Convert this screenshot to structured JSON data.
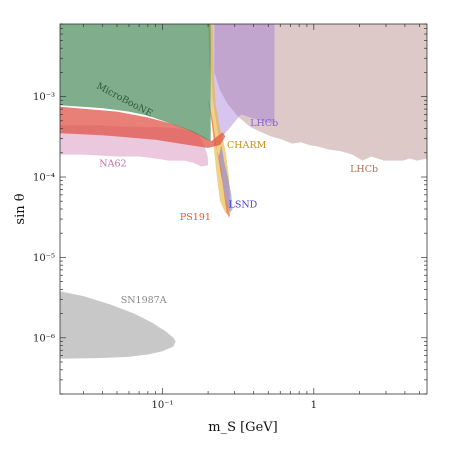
{
  "chart_data": {
    "type": "area",
    "xlabel": "m_S  [GeV]",
    "ylabel": "sin θ",
    "x_scale": "log",
    "y_scale": "log",
    "xlim": [
      0.021,
      5.6
    ],
    "ylim": [
      2e-07,
      0.008
    ],
    "x_ticks": [
      {
        "value": 0.1,
        "label": "10⁻¹"
      },
      {
        "value": 1,
        "label": "1"
      }
    ],
    "y_ticks": [
      {
        "value": 1e-06,
        "label": "10⁻⁶"
      },
      {
        "value": 1e-05,
        "label": "10⁻⁵"
      },
      {
        "value": 0.0001,
        "label": "10⁻⁴"
      },
      {
        "value": 0.001,
        "label": "10⁻³"
      }
    ],
    "grid": false,
    "legend": "none",
    "regions": [
      {
        "name": "LHCb",
        "color": "#b48a86",
        "opacity": 0.45,
        "points": [
          [
            0.22,
            0.008
          ],
          [
            5.6,
            0.008
          ],
          [
            5.6,
            0.00017
          ],
          [
            4.8,
            0.00016
          ],
          [
            4.3,
            0.00017
          ],
          [
            3.9,
            0.00016
          ],
          [
            3.4,
            0.00016
          ],
          [
            2.9,
            0.00016
          ],
          [
            2.4,
            0.00018
          ],
          [
            2.1,
            0.00016
          ],
          [
            1.8,
            0.00019
          ],
          [
            1.5,
            0.00021
          ],
          [
            1.25,
            0.00022
          ],
          [
            1.05,
            0.00024
          ],
          [
            0.93,
            0.00025
          ],
          [
            0.82,
            0.00027
          ],
          [
            0.72,
            0.00026
          ],
          [
            0.62,
            0.00029
          ],
          [
            0.52,
            0.00032
          ],
          [
            0.45,
            0.00036
          ],
          [
            0.38,
            0.00042
          ],
          [
            0.32,
            0.00055
          ],
          [
            0.27,
            0.0008
          ],
          [
            0.24,
            0.0012
          ],
          [
            0.22,
            0.002
          ]
        ]
      },
      {
        "name": "LHCb",
        "color": "#9b6fd6",
        "opacity": 0.4,
        "points": [
          [
            0.21,
            0.008
          ],
          [
            0.55,
            0.008
          ],
          [
            0.55,
            0.00045
          ],
          [
            0.45,
            0.0005
          ],
          [
            0.38,
            0.00055
          ],
          [
            0.33,
            0.0006
          ],
          [
            0.29,
            0.00045
          ],
          [
            0.26,
            0.00035
          ],
          [
            0.235,
            0.0003
          ],
          [
            0.215,
            0.0009
          ],
          [
            0.205,
            0.004
          ]
        ]
      },
      {
        "name": "NA62",
        "color": "#e2b0cf",
        "opacity": 0.7,
        "points": [
          [
            0.021,
            0.00044
          ],
          [
            0.035,
            0.00044
          ],
          [
            0.05,
            0.00043
          ],
          [
            0.07,
            0.00042
          ],
          [
            0.09,
            0.00042
          ],
          [
            0.11,
            0.00041
          ],
          [
            0.13,
            0.0004
          ],
          [
            0.145,
            0.00038
          ],
          [
            0.165,
            0.00036
          ],
          [
            0.18,
            0.0003
          ],
          [
            0.19,
            0.00024
          ],
          [
            0.2,
            0.00017
          ],
          [
            0.2,
            0.00014
          ],
          [
            0.18,
            0.000135
          ],
          [
            0.16,
            0.00015
          ],
          [
            0.14,
            0.00016
          ],
          [
            0.11,
            0.00016
          ],
          [
            0.09,
            0.00017
          ],
          [
            0.07,
            0.00018
          ],
          [
            0.05,
            0.00018
          ],
          [
            0.03,
            0.00019
          ],
          [
            0.021,
            0.00019
          ]
        ]
      },
      {
        "name": "CHARM",
        "color": "#e8b339",
        "opacity": 0.6,
        "points": [
          [
            0.2,
            0.008
          ],
          [
            0.215,
            0.008
          ],
          [
            0.218,
            0.002
          ],
          [
            0.225,
            0.0008
          ],
          [
            0.24,
            0.0004
          ],
          [
            0.26,
            0.00022
          ],
          [
            0.275,
            0.0001
          ],
          [
            0.28,
            4e-05
          ],
          [
            0.275,
            3.4e-05
          ],
          [
            0.26,
            3.6e-05
          ],
          [
            0.24,
            5e-05
          ],
          [
            0.23,
            9e-05
          ],
          [
            0.22,
            0.0002
          ],
          [
            0.21,
            0.0006
          ],
          [
            0.205,
            0.002
          ]
        ]
      },
      {
        "name": "LSND",
        "color": "#7a74e6",
        "opacity": 0.55,
        "points": [
          [
            0.235,
            0.00018
          ],
          [
            0.25,
            8e-05
          ],
          [
            0.265,
            4.5e-05
          ],
          [
            0.28,
            3.6e-05
          ],
          [
            0.29,
            4e-05
          ],
          [
            0.285,
            6e-05
          ],
          [
            0.27,
            0.0001
          ],
          [
            0.255,
            0.00016
          ],
          [
            0.245,
            0.00025
          ]
        ]
      },
      {
        "name": "PS191",
        "color": "#f0622e",
        "opacity": 0.6,
        "points": [
          [
            0.2,
            0.0009
          ],
          [
            0.21,
            0.0005
          ],
          [
            0.22,
            0.00028
          ],
          [
            0.235,
            0.00018
          ],
          [
            0.245,
            0.00012
          ],
          [
            0.255,
            6e-05
          ],
          [
            0.265,
            3.6e-05
          ],
          [
            0.275,
            3.1e-05
          ],
          [
            0.28,
            3.4e-05
          ],
          [
            0.272,
            4e-05
          ],
          [
            0.26,
            5.5e-05
          ],
          [
            0.245,
            0.0001
          ],
          [
            0.23,
            0.0002
          ],
          [
            0.215,
            0.0005
          ],
          [
            0.205,
            0.0008
          ]
        ]
      },
      {
        "name": "MicroBooNE",
        "color": "#e0554a",
        "opacity": 0.75,
        "points": [
          [
            0.021,
            0.00075
          ],
          [
            0.05,
            0.00065
          ],
          [
            0.08,
            0.00055
          ],
          [
            0.12,
            0.00045
          ],
          [
            0.16,
            0.00037
          ],
          [
            0.19,
            0.00031
          ],
          [
            0.21,
            0.00028
          ],
          [
            0.23,
            0.00032
          ],
          [
            0.25,
            0.00036
          ],
          [
            0.26,
            0.00032
          ],
          [
            0.24,
            0.00025
          ],
          [
            0.22,
            0.00024
          ],
          [
            0.2,
            0.00023
          ],
          [
            0.17,
            0.00024
          ],
          [
            0.13,
            0.00026
          ],
          [
            0.09,
            0.00029
          ],
          [
            0.06,
            0.00031
          ],
          [
            0.04,
            0.00033
          ],
          [
            0.021,
            0.00035
          ]
        ]
      },
      {
        "name": "MicroBooNE",
        "color": "#4a8a5a",
        "opacity": 0.7,
        "points": [
          [
            0.021,
            0.008
          ],
          [
            0.208,
            0.008
          ],
          [
            0.208,
            0.00028
          ],
          [
            0.19,
            0.0003
          ],
          [
            0.16,
            0.00036
          ],
          [
            0.13,
            0.00042
          ],
          [
            0.1,
            0.0005
          ],
          [
            0.08,
            0.00058
          ],
          [
            0.06,
            0.00065
          ],
          [
            0.04,
            0.00072
          ],
          [
            0.021,
            0.00078
          ]
        ]
      },
      {
        "name": "SN1987A",
        "color": "#c8c8c8",
        "opacity": 1,
        "points": [
          [
            0.021,
            3.8e-06
          ],
          [
            0.03,
            3.3e-06
          ],
          [
            0.045,
            2.6e-06
          ],
          [
            0.065,
            2e-06
          ],
          [
            0.085,
            1.55e-06
          ],
          [
            0.105,
            1.2e-06
          ],
          [
            0.118,
            1e-06
          ],
          [
            0.122,
            9e-07
          ],
          [
            0.118,
            7.8e-07
          ],
          [
            0.1,
            6.8e-07
          ],
          [
            0.08,
            6.2e-07
          ],
          [
            0.06,
            5.8e-07
          ],
          [
            0.04,
            5.6e-07
          ],
          [
            0.021,
            5.5e-07
          ]
        ]
      }
    ],
    "annotations": [
      {
        "text": "MicroBooNE",
        "x": 0.055,
        "y": 0.00085,
        "color": "#2f5a3a",
        "rotate": 28
      },
      {
        "text": "LHCb",
        "x": 0.47,
        "y": 0.00043,
        "color": "#8a5fd0",
        "rotate": 0
      },
      {
        "text": "CHARM",
        "x": 0.36,
        "y": 0.00023,
        "color": "#c8930e",
        "rotate": 0
      },
      {
        "text": "NA62",
        "x": 0.047,
        "y": 0.000135,
        "color": "#c86ca8",
        "rotate": 0
      },
      {
        "text": "LHCb",
        "x": 2.15,
        "y": 0.000115,
        "color": "#b07050",
        "rotate": 0
      },
      {
        "text": "LSND",
        "x": 0.34,
        "y": 4.2e-05,
        "color": "#4a3fd0",
        "rotate": 0
      },
      {
        "text": "PS191",
        "x": 0.165,
        "y": 2.9e-05,
        "color": "#e05a20",
        "rotate": 0
      },
      {
        "text": "SN1987A",
        "x": 0.075,
        "y": 2.7e-06,
        "color": "#888888",
        "rotate": 0
      }
    ]
  }
}
